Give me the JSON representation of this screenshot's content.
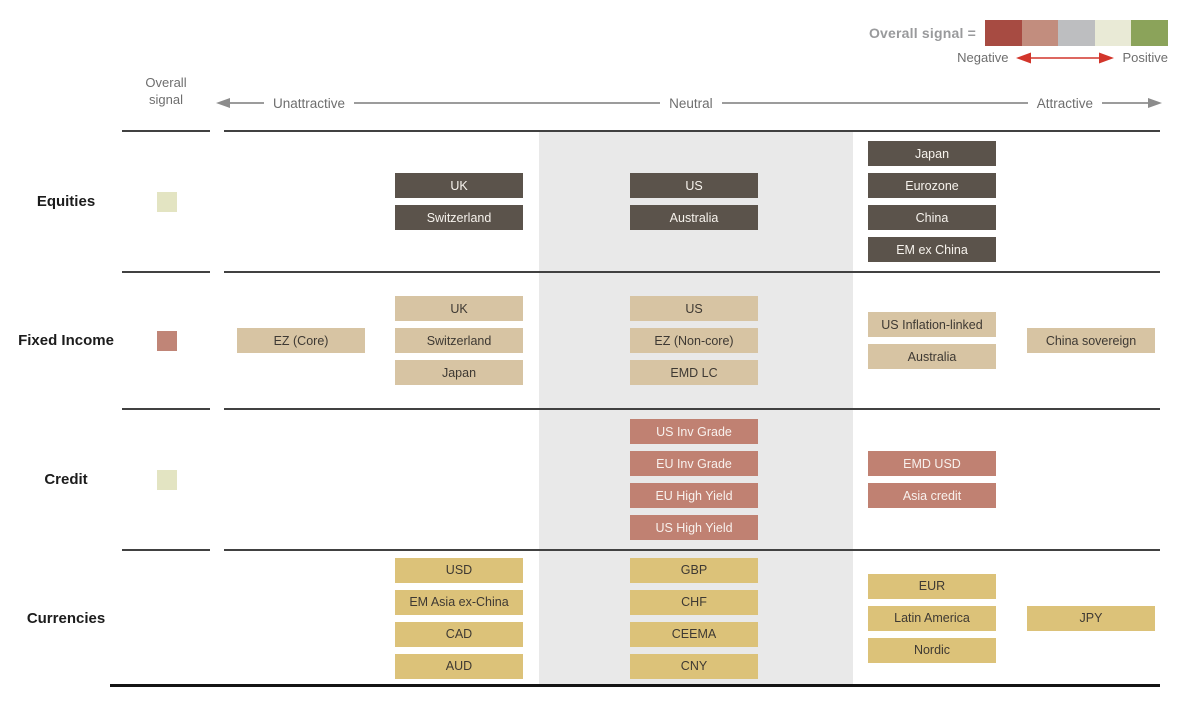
{
  "legend": {
    "title": "Overall signal =",
    "swatch_colors": [
      "#a74b42",
      "#c28d7e",
      "#bdbec0",
      "#e9ead6",
      "#8ba35a"
    ],
    "negative_label": "Negative",
    "positive_label": "Positive",
    "arrow_color": "#d2352b"
  },
  "header": {
    "signal_column_label": "Overall signal",
    "axis_labels": [
      "Unattractive",
      "Neutral",
      "Attractive"
    ]
  },
  "chart_data": {
    "type": "table",
    "title": "",
    "axis": {
      "labels": [
        "Unattractive",
        "Neutral",
        "Attractive"
      ],
      "position_scale": [
        "most unattractive",
        "unattractive",
        "neutral",
        "attractive",
        "most attractive"
      ]
    },
    "rows": [
      {
        "label": "Equities",
        "signal_level": 4,
        "signal_color": "#e3e4c2",
        "box_color": "#5b534b",
        "box_text_color": "#f7f3ed",
        "groups": [
          [],
          [
            "UK",
            "Switzerland"
          ],
          [
            "US",
            "Australia"
          ],
          [
            "Japan",
            "Eurozone",
            "China",
            "EM ex China"
          ],
          []
        ]
      },
      {
        "label": "Fixed Income",
        "signal_level": 2,
        "signal_color": "#c08577",
        "box_color": "#d7c4a3",
        "box_text_color": "#3e3933",
        "groups": [
          [
            "EZ (Core)"
          ],
          [
            "UK",
            "Switzerland",
            "Japan"
          ],
          [
            "US",
            "EZ (Non-core)",
            "EMD LC"
          ],
          [
            "US Inflation-linked",
            "Australia"
          ],
          [
            "China sovereign"
          ]
        ]
      },
      {
        "label": "Credit",
        "signal_level": 4,
        "signal_color": "#e3e4c2",
        "box_color": "#c08172",
        "box_text_color": "#f8f1ed",
        "groups": [
          [],
          [],
          [
            "US Inv Grade",
            "EU Inv Grade",
            "EU High Yield",
            "US High Yield"
          ],
          [
            "EMD USD",
            "Asia credit"
          ],
          []
        ]
      },
      {
        "label": "Currencies",
        "signal_level": null,
        "signal_color": null,
        "box_color": "#dcc279",
        "box_text_color": "#3e3933",
        "groups": [
          [],
          [
            "USD",
            "EM Asia ex-China",
            "CAD",
            "AUD"
          ],
          [
            "GBP",
            "CHF",
            "CEEMA",
            "CNY"
          ],
          [
            "EUR",
            "Latin America",
            "Nordic"
          ],
          [
            "JPY"
          ]
        ]
      }
    ]
  }
}
